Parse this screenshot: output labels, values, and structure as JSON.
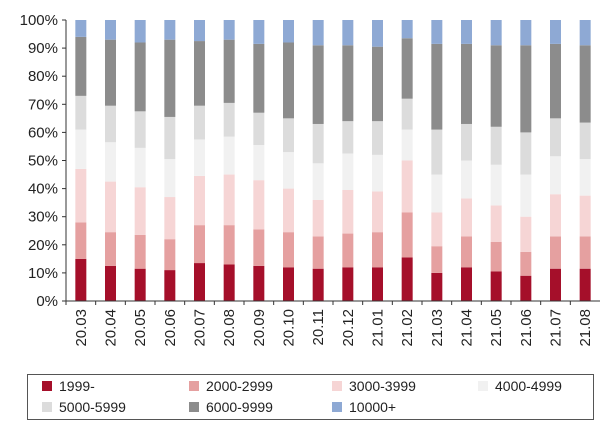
{
  "chart_data": {
    "type": "bar",
    "stacked": true,
    "percent": true,
    "categories": [
      "20.03",
      "20.04",
      "20.05",
      "20.06",
      "20.07",
      "20.08",
      "20.09",
      "20.10",
      "20.11",
      "20.12",
      "21.01",
      "21.02",
      "21.03",
      "21.04",
      "21.05",
      "21.06",
      "21.07",
      "21.08"
    ],
    "ylim": [
      0,
      100
    ],
    "yticks": [
      "0%",
      "10%",
      "20%",
      "30%",
      "40%",
      "50%",
      "60%",
      "70%",
      "80%",
      "90%",
      "100%"
    ],
    "grid": false,
    "legend_position": "bottom",
    "series": [
      {
        "name": "1999-",
        "color": "#a50f2a",
        "values": [
          15,
          12.5,
          11.5,
          11,
          13.5,
          13,
          12.5,
          12,
          11.5,
          12,
          12,
          15.5,
          10,
          12,
          10.5,
          9,
          11.5,
          11.5
        ]
      },
      {
        "name": "2000-2999",
        "color": "#e5a0a0",
        "values": [
          13,
          12,
          12,
          11,
          13.5,
          14,
          13,
          12.5,
          11.5,
          12,
          12.5,
          16,
          9.5,
          11,
          10.5,
          8.5,
          11.5,
          11.5
        ]
      },
      {
        "name": "3000-3999",
        "color": "#f6d5d5",
        "values": [
          19,
          18,
          17,
          15,
          17.5,
          18,
          17.5,
          15.5,
          13,
          15.5,
          14.5,
          18.5,
          12,
          13.5,
          13,
          12.5,
          15,
          14.5
        ]
      },
      {
        "name": "4000-4999",
        "color": "#f1f1f1",
        "values": [
          14,
          14,
          14,
          13.5,
          13,
          13.5,
          12.5,
          13,
          13,
          13,
          13,
          11,
          13.5,
          13.5,
          14.5,
          15,
          13.5,
          13
        ]
      },
      {
        "name": "5000-5999",
        "color": "#dcdcdc",
        "values": [
          12,
          13,
          13,
          15,
          12,
          12,
          11.5,
          12,
          14,
          11.5,
          12,
          11,
          16,
          13,
          13.5,
          15,
          13.5,
          13
        ]
      },
      {
        "name": "6000-9999",
        "color": "#8c8c8c",
        "values": [
          21,
          23.5,
          24.5,
          27.5,
          23,
          22.5,
          24.5,
          27,
          28,
          27,
          26.5,
          21.5,
          30.5,
          28.5,
          29,
          31,
          26.5,
          27.5
        ]
      },
      {
        "name": "10000+",
        "color": "#8ea9d4",
        "values": [
          6,
          7,
          8,
          7,
          7.5,
          7,
          8.5,
          8,
          9,
          9,
          9.5,
          6.5,
          8.5,
          8.5,
          9,
          9,
          8.5,
          9
        ]
      }
    ]
  }
}
